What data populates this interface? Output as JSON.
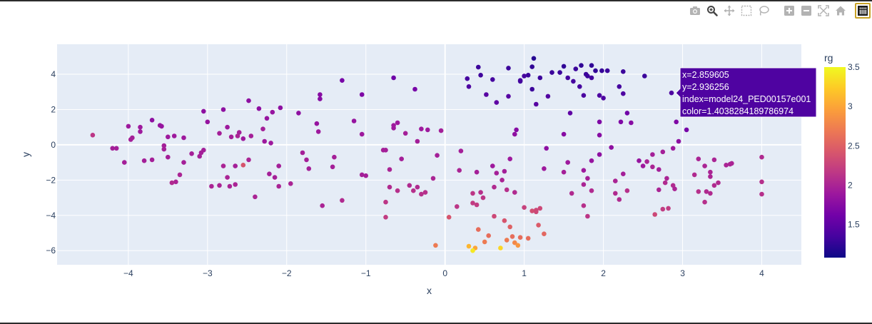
{
  "toolbar": {
    "icons": [
      "camera-icon",
      "zoom-icon",
      "pan-icon",
      "box-select-icon",
      "lasso-icon",
      "zoom-in-icon",
      "zoom-out-icon",
      "autoscale-icon",
      "home-icon",
      "plotly-logo-icon"
    ],
    "icon_color": "#b3b3b3",
    "active_icon_color": "#444444"
  },
  "chart_data": {
    "type": "scatter",
    "xlabel": "x",
    "ylabel": "y",
    "xlim": [
      -4.9,
      4.5
    ],
    "ylim": [
      -6.8,
      5.7
    ],
    "x_ticks": [
      -4,
      -3,
      -2,
      -1,
      0,
      1,
      2,
      3,
      4
    ],
    "x_tick_labels": [
      "−4",
      "−3",
      "−2",
      "−1",
      "0",
      "1",
      "2",
      "3",
      "4"
    ],
    "y_ticks": [
      -6,
      -4,
      -2,
      0,
      2,
      4
    ],
    "y_tick_labels": [
      "−6",
      "−4",
      "−2",
      "0",
      "2",
      "4"
    ],
    "grid": true,
    "plot_bgcolor": "#e5ecf6",
    "colorbar": {
      "title": "rg",
      "cmin": 1.08,
      "cmax": 3.5,
      "ticks": [
        1.5,
        2,
        2.5,
        3,
        3.5
      ],
      "tick_labels": [
        "1.5",
        "2",
        "2.5",
        "3",
        "3.5"
      ],
      "colorscale": [
        "#0d0887",
        "#46039f",
        "#7201a8",
        "#9c179e",
        "#bd3786",
        "#d8576b",
        "#ed7953",
        "#fb9f3a",
        "#fdca26",
        "#f0f921"
      ]
    },
    "hover": {
      "lines": [
        "x=2.859605",
        "y=2.936256",
        "index=model24_PED00157e001",
        "color=1.4038284189786974"
      ],
      "point": [
        2.86,
        2.94
      ],
      "color": 1.4038
    },
    "points": [
      [
        1.12,
        4.9,
        1.2
      ],
      [
        1.1,
        4.42,
        1.25
      ],
      [
        1.35,
        4.1,
        1.3
      ],
      [
        1.05,
        3.95,
        1.3
      ],
      [
        0.95,
        3.6,
        1.3
      ],
      [
        1.1,
        3.15,
        1.3
      ],
      [
        0.42,
        4.4,
        1.3
      ],
      [
        0.45,
        3.95,
        1.32
      ],
      [
        0.6,
        3.7,
        1.35
      ],
      [
        0.28,
        3.75,
        1.35
      ],
      [
        0.3,
        3.3,
        1.4
      ],
      [
        0.8,
        4.35,
        1.3
      ],
      [
        0.95,
        3.65,
        1.35
      ],
      [
        1.2,
        3.8,
        1.3
      ],
      [
        1.5,
        4.45,
        1.25
      ],
      [
        1.65,
        4.3,
        1.3
      ],
      [
        1.72,
        4.5,
        1.25
      ],
      [
        1.85,
        4.5,
        1.25
      ],
      [
        1.9,
        4.2,
        1.25
      ],
      [
        1.98,
        4.2,
        1.28
      ],
      [
        2.05,
        4.2,
        1.3
      ],
      [
        1.8,
        3.9,
        1.3
      ],
      [
        1.62,
        3.6,
        1.35
      ],
      [
        1.7,
        3.3,
        1.35
      ],
      [
        1.75,
        2.8,
        1.38
      ],
      [
        1.95,
        2.8,
        1.4
      ],
      [
        2.0,
        2.65,
        1.4
      ],
      [
        2.25,
        4.15,
        1.3
      ],
      [
        2.2,
        3.3,
        1.35
      ],
      [
        2.25,
        2.9,
        1.4
      ],
      [
        2.52,
        3.9,
        1.3
      ],
      [
        2.86,
        2.94,
        1.4
      ],
      [
        1.15,
        2.3,
        1.45
      ],
      [
        1.3,
        2.75,
        1.42
      ],
      [
        1.58,
        1.8,
        1.5
      ],
      [
        0.52,
        2.85,
        1.45
      ],
      [
        0.65,
        2.4,
        1.5
      ],
      [
        0.8,
        2.75,
        1.45
      ],
      [
        1.0,
        3.9,
        1.35
      ],
      [
        1.45,
        4.1,
        1.3
      ],
      [
        1.55,
        3.8,
        1.35
      ],
      [
        1.85,
        3.8,
        1.33
      ],
      [
        1.78,
        4.0,
        1.3
      ],
      [
        2.3,
        1.8,
        1.6
      ],
      [
        2.22,
        1.3,
        1.7
      ],
      [
        2.35,
        1.25,
        1.75
      ],
      [
        2.92,
        1.3,
        1.7
      ],
      [
        2.95,
        0.2,
        1.8
      ],
      [
        3.05,
        0.85,
        1.65
      ],
      [
        2.88,
        -0.2,
        1.9
      ],
      [
        2.75,
        -0.4,
        1.95
      ],
      [
        2.62,
        -0.55,
        1.95
      ],
      [
        2.55,
        -0.95,
        2.0
      ],
      [
        2.62,
        -1.25,
        2.0
      ],
      [
        2.7,
        -1.4,
        1.95
      ],
      [
        2.8,
        -1.9,
        2.0
      ],
      [
        2.78,
        -2.15,
        2.05
      ],
      [
        2.88,
        -2.3,
        2.05
      ],
      [
        2.9,
        -2.5,
        2.0
      ],
      [
        2.7,
        -2.55,
        2.0
      ],
      [
        2.5,
        -1.2,
        1.9
      ],
      [
        2.45,
        -0.9,
        1.85
      ],
      [
        2.25,
        -1.65,
        1.95
      ],
      [
        2.15,
        -2.05,
        2.0
      ],
      [
        2.3,
        -2.6,
        2.1
      ],
      [
        2.15,
        -2.75,
        2.05
      ],
      [
        2.2,
        -3.1,
        2.05
      ],
      [
        2.1,
        -0.15,
        1.8
      ],
      [
        1.95,
        -0.55,
        1.8
      ],
      [
        1.85,
        -0.9,
        1.85
      ],
      [
        1.75,
        -1.45,
        1.9
      ],
      [
        1.8,
        -1.9,
        1.95
      ],
      [
        1.75,
        -2.25,
        2.0
      ],
      [
        1.85,
        -2.6,
        2.05
      ],
      [
        1.75,
        -3.45,
        2.1
      ],
      [
        1.8,
        -4.05,
        2.15
      ],
      [
        1.6,
        -2.75,
        2.05
      ],
      [
        1.55,
        -1.0,
        1.9
      ],
      [
        1.5,
        -1.55,
        1.95
      ],
      [
        1.25,
        -1.35,
        1.9
      ],
      [
        1.28,
        -0.2,
        1.8
      ],
      [
        1.5,
        0.6,
        1.75
      ],
      [
        1.95,
        1.3,
        1.7
      ],
      [
        1.95,
        0.55,
        1.75
      ],
      [
        0.9,
        0.85,
        1.75
      ],
      [
        0.88,
        0.6,
        1.8
      ],
      [
        0.82,
        -0.8,
        1.9
      ],
      [
        0.75,
        -1.5,
        1.95
      ],
      [
        0.6,
        -1.2,
        1.9
      ],
      [
        0.65,
        -1.6,
        1.95
      ],
      [
        0.72,
        -2.0,
        2.0
      ],
      [
        0.88,
        -2.7,
        2.05
      ],
      [
        0.78,
        -2.55,
        2.1
      ],
      [
        0.62,
        -2.4,
        2.05
      ],
      [
        0.4,
        -1.55,
        1.95
      ],
      [
        0.45,
        -2.7,
        2.1
      ],
      [
        0.48,
        -3.0,
        2.15
      ],
      [
        0.4,
        -3.4,
        2.2
      ],
      [
        0.2,
        -0.35,
        1.95
      ],
      [
        0.18,
        -1.45,
        2.0
      ],
      [
        0.35,
        -2.75,
        2.15
      ],
      [
        0.35,
        -3.3,
        2.2
      ],
      [
        0.15,
        -3.5,
        2.15
      ],
      [
        0.62,
        -4.05,
        2.3
      ],
      [
        0.75,
        -4.3,
        2.4
      ],
      [
        0.55,
        -5.15,
        2.6
      ],
      [
        0.5,
        -5.5,
        2.7
      ],
      [
        0.42,
        -4.8,
        2.6
      ],
      [
        0.38,
        -5.85,
        3.0
      ],
      [
        0.3,
        -5.75,
        3.1
      ],
      [
        0.35,
        -6.0,
        3.4
      ],
      [
        0.7,
        -5.85,
        3.3
      ],
      [
        0.78,
        -5.4,
        2.7
      ],
      [
        0.85,
        -5.2,
        2.6
      ],
      [
        0.88,
        -5.55,
        2.8
      ],
      [
        0.92,
        -5.7,
        2.9
      ],
      [
        0.82,
        -4.65,
        2.5
      ],
      [
        1.15,
        -3.8,
        2.3
      ],
      [
        1.2,
        -3.6,
        2.3
      ],
      [
        1.1,
        -3.75,
        2.35
      ],
      [
        1.18,
        -4.55,
        2.45
      ],
      [
        1.25,
        -5.05,
        2.55
      ],
      [
        0.95,
        -5.25,
        2.6
      ],
      [
        1.05,
        -5.3,
        2.6
      ],
      [
        1.15,
        -3.7,
        2.3
      ],
      [
        1.0,
        -3.55,
        2.25
      ],
      [
        0.05,
        -4.1,
        2.4
      ],
      [
        -0.12,
        -5.7,
        2.7
      ],
      [
        -0.1,
        -0.6,
        1.95
      ],
      [
        -0.15,
        -1.9,
        2.0
      ],
      [
        -0.25,
        -2.7,
        2.1
      ],
      [
        -0.3,
        -2.8,
        2.1
      ],
      [
        -0.35,
        -2.4,
        2.05
      ],
      [
        -0.4,
        -2.6,
        2.1
      ],
      [
        -0.45,
        -2.3,
        2.05
      ],
      [
        -0.6,
        -2.6,
        2.1
      ],
      [
        -0.7,
        -2.4,
        2.05
      ],
      [
        -0.75,
        -3.25,
        2.15
      ],
      [
        -0.75,
        -4.1,
        2.2
      ],
      [
        -0.55,
        -0.8,
        1.95
      ],
      [
        -0.7,
        -1.4,
        2.0
      ],
      [
        -0.78,
        -0.3,
        1.95
      ],
      [
        -0.75,
        -0.3,
        1.95
      ],
      [
        -0.3,
        0.9,
        1.9
      ],
      [
        -0.22,
        0.85,
        1.9
      ],
      [
        -0.35,
        0.2,
        1.95
      ],
      [
        -0.05,
        0.8,
        1.95
      ],
      [
        -0.5,
        0.65,
        1.95
      ],
      [
        -0.65,
        1.1,
        1.9
      ],
      [
        -0.6,
        1.25,
        1.9
      ],
      [
        -0.65,
        0.95,
        1.9
      ],
      [
        -0.65,
        3.8,
        1.6
      ],
      [
        -0.38,
        3.15,
        1.65
      ],
      [
        -1.05,
        2.85,
        1.7
      ],
      [
        -1.15,
        1.35,
        1.85
      ],
      [
        -1.05,
        -1.7,
        1.95
      ],
      [
        -1.0,
        -1.75,
        1.95
      ],
      [
        -1.05,
        0.6,
        1.9
      ],
      [
        -1.3,
        -3.15,
        2.05
      ],
      [
        -1.3,
        3.65,
        1.65
      ],
      [
        -1.4,
        -0.7,
        1.95
      ],
      [
        -1.42,
        -1.25,
        1.95
      ],
      [
        -1.55,
        -3.45,
        2.0
      ],
      [
        -1.58,
        2.6,
        1.75
      ],
      [
        -1.58,
        2.85,
        1.75
      ],
      [
        -1.6,
        0.75,
        1.9
      ],
      [
        -1.62,
        1.2,
        1.85
      ],
      [
        -1.75,
        -0.85,
        1.95
      ],
      [
        -1.8,
        -0.45,
        1.95
      ],
      [
        -1.72,
        -1.35,
        1.95
      ],
      [
        -1.85,
        1.8,
        1.8
      ],
      [
        -1.95,
        -2.2,
        2.0
      ],
      [
        -2.1,
        -1.2,
        1.95
      ],
      [
        -2.1,
        -2.35,
        2.0
      ],
      [
        -2.15,
        -1.85,
        1.95
      ],
      [
        -2.18,
        1.85,
        1.85
      ],
      [
        -2.22,
        -1.65,
        1.95
      ],
      [
        -2.28,
        0.2,
        1.9
      ],
      [
        -2.08,
        2.1,
        1.8
      ],
      [
        -2.2,
        0.1,
        1.9
      ],
      [
        -2.25,
        1.5,
        1.85
      ],
      [
        -2.3,
        0.9,
        1.95
      ],
      [
        -2.35,
        2.05,
        1.8
      ],
      [
        -2.55,
        0.35,
        1.9
      ],
      [
        -2.55,
        -1.15,
        2.4
      ],
      [
        -2.62,
        0.5,
        2.0
      ],
      [
        -2.7,
        0.45,
        1.95
      ],
      [
        -2.75,
        1.0,
        1.9
      ],
      [
        -2.72,
        -2.35,
        2.0
      ],
      [
        -2.75,
        -1.85,
        2.0
      ],
      [
        -2.95,
        -2.35,
        2.0
      ],
      [
        -2.85,
        -2.3,
        2.0
      ],
      [
        -2.8,
        -1.2,
        2.0
      ],
      [
        -2.65,
        -1.2,
        1.95
      ],
      [
        -2.65,
        -2.25,
        2.0
      ],
      [
        -2.48,
        -0.85,
        2.0
      ],
      [
        -2.6,
        0.7,
        1.95
      ],
      [
        -2.4,
        -2.95,
        2.0
      ],
      [
        -2.45,
        0.5,
        1.95
      ],
      [
        -2.85,
        0.65,
        1.95
      ],
      [
        -2.48,
        2.5,
        1.8
      ],
      [
        -2.8,
        2.0,
        1.8
      ],
      [
        -3.05,
        1.9,
        1.8
      ],
      [
        -3.0,
        1.3,
        1.85
      ],
      [
        -3.05,
        -0.3,
        1.95
      ],
      [
        -3.1,
        -0.65,
        1.95
      ],
      [
        -3.08,
        -0.45,
        1.95
      ],
      [
        -3.2,
        -0.5,
        1.95
      ],
      [
        -3.3,
        -1.0,
        1.95
      ],
      [
        -3.35,
        -1.7,
        2.0
      ],
      [
        -3.4,
        -2.1,
        2.0
      ],
      [
        -3.45,
        -2.15,
        2.05
      ],
      [
        -3.3,
        0.4,
        1.9
      ],
      [
        -3.42,
        0.5,
        1.9
      ],
      [
        -3.5,
        -0.7,
        1.95
      ],
      [
        -3.55,
        -0.25,
        1.95
      ],
      [
        -3.6,
        1.1,
        1.85
      ],
      [
        -3.58,
        1.05,
        1.85
      ],
      [
        -3.5,
        0.45,
        1.9
      ],
      [
        -3.7,
        1.4,
        1.8
      ],
      [
        -3.7,
        -0.85,
        1.95
      ],
      [
        -3.8,
        -0.9,
        1.95
      ],
      [
        -3.85,
        0.75,
        1.9
      ],
      [
        -3.85,
        1.0,
        1.9
      ],
      [
        -3.95,
        0.4,
        1.95
      ],
      [
        -3.97,
        0.3,
        1.95
      ],
      [
        -4.0,
        1.05,
        1.9
      ],
      [
        -4.05,
        -1.0,
        1.95
      ],
      [
        -4.15,
        -0.2,
        1.95
      ],
      [
        -4.2,
        -0.2,
        1.95
      ],
      [
        -4.45,
        0.55,
        2.15
      ],
      [
        -3.55,
        -0.05,
        1.95
      ],
      [
        3.2,
        -0.8,
        2.0
      ],
      [
        3.28,
        -1.2,
        2.0
      ],
      [
        3.4,
        -0.85,
        2.0
      ],
      [
        3.35,
        -1.8,
        2.0
      ],
      [
        3.35,
        -1.55,
        2.0
      ],
      [
        3.15,
        -1.7,
        2.05
      ],
      [
        3.4,
        -2.3,
        2.05
      ],
      [
        3.45,
        -2.15,
        2.05
      ],
      [
        3.3,
        -2.65,
        2.05
      ],
      [
        3.35,
        -2.75,
        2.05
      ],
      [
        3.28,
        -3.25,
        2.1
      ],
      [
        3.2,
        -2.65,
        2.1
      ],
      [
        3.55,
        -1.15,
        2.0
      ],
      [
        3.62,
        -1.05,
        2.0
      ],
      [
        3.6,
        -1.1,
        2.0
      ],
      [
        4.0,
        -0.7,
        2.05
      ],
      [
        4.0,
        -2.1,
        2.1
      ],
      [
        4.0,
        -2.8,
        2.1
      ],
      [
        2.65,
        -3.95,
        2.3
      ],
      [
        2.75,
        -3.65,
        2.2
      ],
      [
        2.82,
        -3.6,
        2.2
      ]
    ]
  }
}
